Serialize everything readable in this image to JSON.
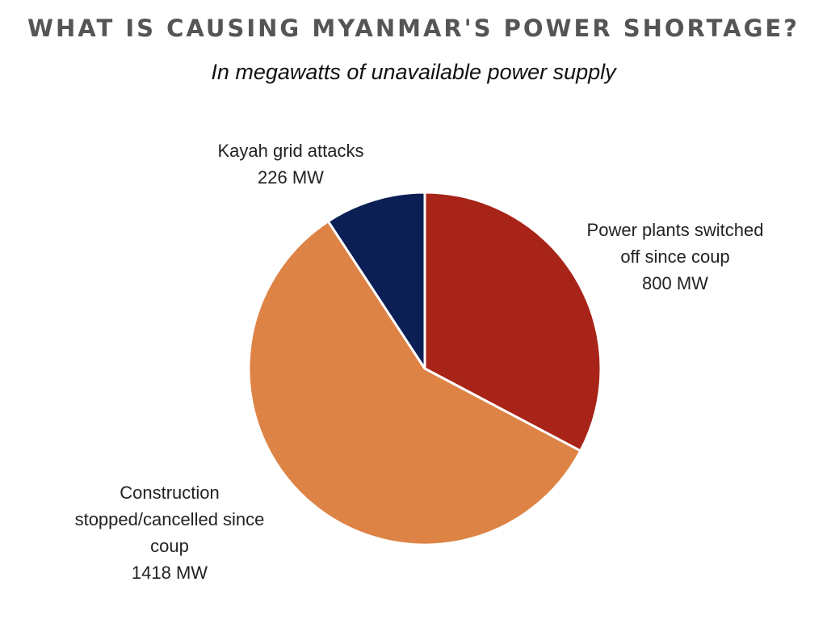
{
  "chart_data": {
    "type": "pie",
    "title": "WHAT IS CAUSING MYANMAR'S POWER SHORTAGE?",
    "subtitle": "In megawatts of unavailable power supply",
    "unit": "MW",
    "slices": [
      {
        "label_lines": [
          "Power plants switched",
          "off since coup"
        ],
        "value_label": "800 MW",
        "value": 800,
        "color": "#a82418"
      },
      {
        "label_lines": [
          "Construction",
          "stopped/cancelled since",
          "coup"
        ],
        "value_label": "1418 MW",
        "value": 1418,
        "color": "#dd8345"
      },
      {
        "label_lines": [
          "Kayah grid attacks"
        ],
        "value_label": "226 MW",
        "value": 226,
        "color": "#0b1f55"
      }
    ]
  }
}
